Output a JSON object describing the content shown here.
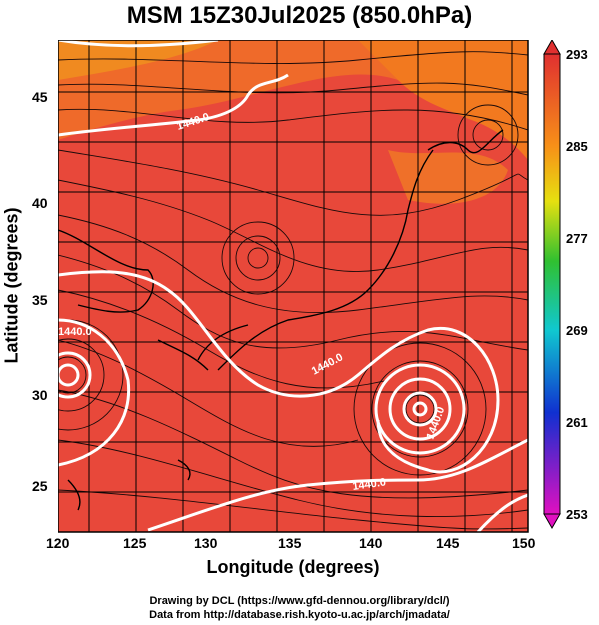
{
  "title": "MSM 15Z30Jul2025 (850.0hPa)",
  "x_axis": {
    "label": "Longitude (degrees)",
    "ticks": [
      "120",
      "125",
      "130",
      "135",
      "140",
      "145",
      "150"
    ]
  },
  "y_axis": {
    "label": "Latitude  (degrees)",
    "ticks": [
      "25",
      "30",
      "35",
      "40",
      "45"
    ]
  },
  "colorbar": {
    "ticks": [
      "293",
      "285",
      "277",
      "269",
      "261",
      "253"
    ]
  },
  "contours": [
    {
      "label": "1440.0"
    },
    {
      "label": "1440.0"
    },
    {
      "label": "1440.0"
    },
    {
      "label": "1440.0"
    },
    {
      "label": "1440.0"
    }
  ],
  "credits": {
    "line1": "Drawing by DCL (https://www.gfd-dennou.org/library/dcl/)",
    "line2": "Data from http://database.rish.kyoto-u.ac.jp/arch/jmadata/"
  },
  "colors": {
    "map_base": "#e8483a",
    "map_warm": "#f2791f",
    "contour": "#ffffff"
  }
}
